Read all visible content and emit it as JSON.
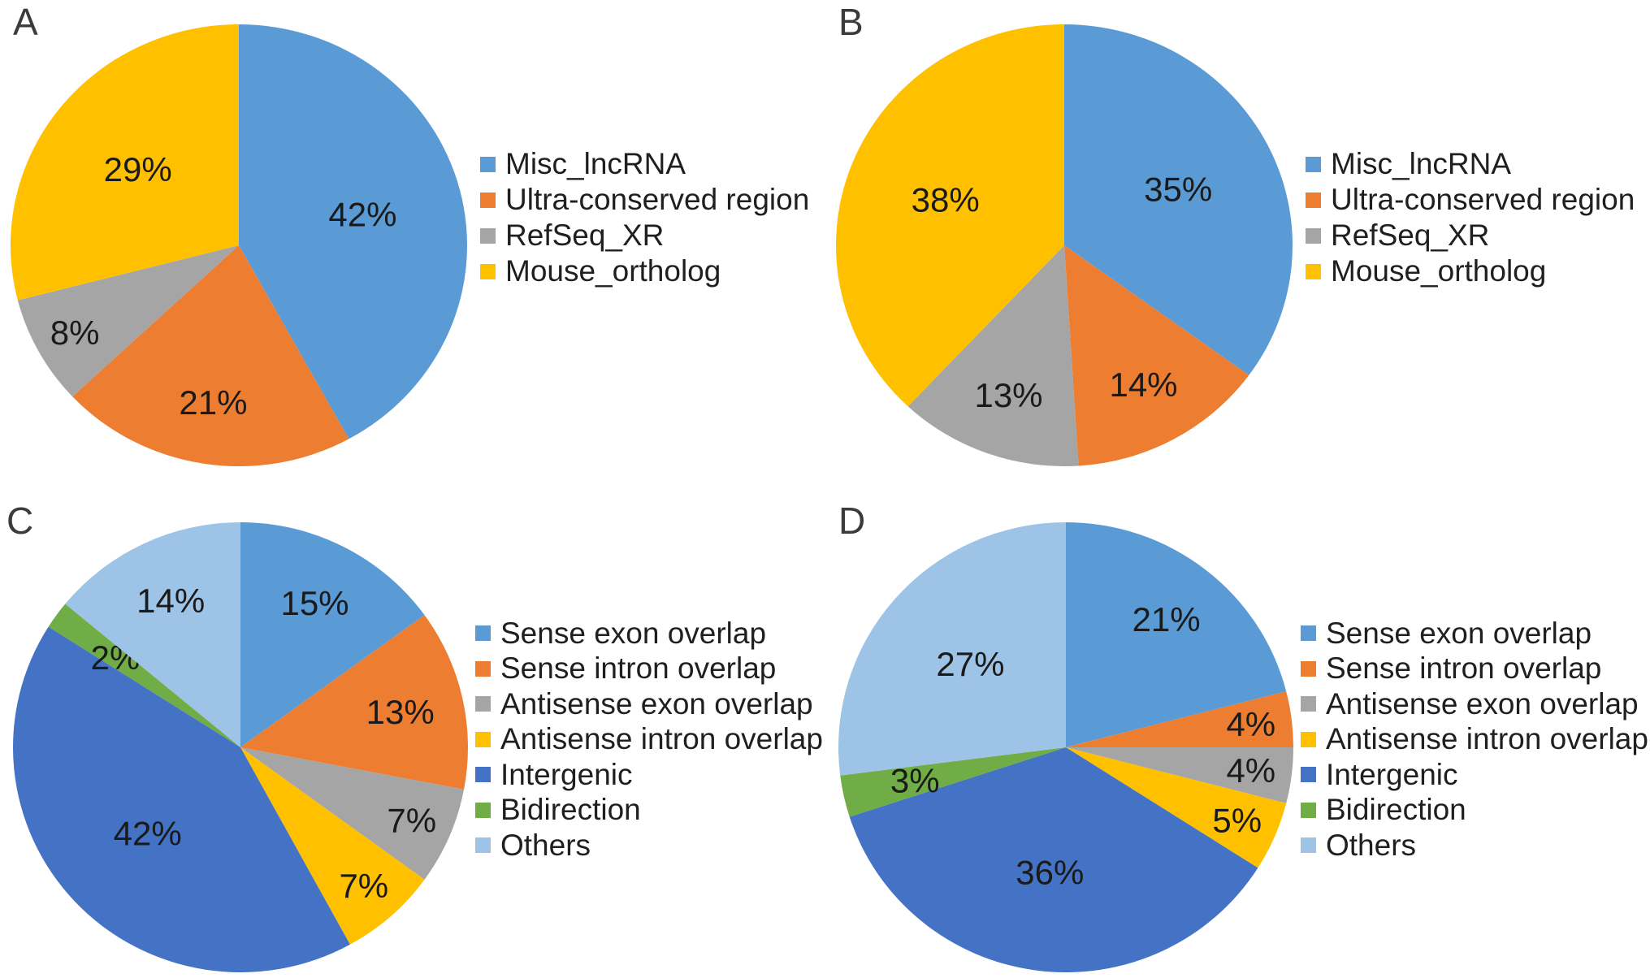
{
  "figure": {
    "background": "#FFFFFF",
    "panel_letters": [
      "A",
      "B",
      "C",
      "D"
    ],
    "letter_color": "#3B3B3B",
    "percent_label_color": "#1A1A1A",
    "legend_text_color": "#1F1F1F"
  },
  "chart_data": [
    {
      "panel": "A",
      "type": "pie",
      "title": "",
      "categories": [
        "Misc_lncRNA",
        "Ultra-conserved region",
        "RefSeq_XR",
        "Mouse_ortholog"
      ],
      "values": [
        42,
        21,
        8,
        29
      ],
      "percent_labels": [
        "42%",
        "21%",
        "8%",
        "29%"
      ],
      "colors": [
        "#5B9BD5",
        "#ED7D31",
        "#A5A5A5",
        "#FFC000"
      ],
      "legend_position": "right",
      "start_angle_deg": 0,
      "direction": "clockwise"
    },
    {
      "panel": "B",
      "type": "pie",
      "title": "",
      "categories": [
        "Misc_lncRNA",
        "Ultra-conserved region",
        "RefSeq_XR",
        "Mouse_ortholog"
      ],
      "values": [
        35,
        14,
        13,
        38
      ],
      "percent_labels": [
        "35%",
        "14%",
        "13%",
        "38%"
      ],
      "colors": [
        "#5B9BD5",
        "#ED7D31",
        "#A5A5A5",
        "#FFC000"
      ],
      "legend_position": "right",
      "start_angle_deg": 0,
      "direction": "clockwise"
    },
    {
      "panel": "C",
      "type": "pie",
      "title": "",
      "categories": [
        "Sense exon overlap",
        "Sense intron overlap",
        "Antisense exon overlap",
        "Antisense intron overlap",
        "Intergenic",
        "Bidirection",
        "Others"
      ],
      "values": [
        15,
        13,
        7,
        7,
        42,
        2,
        14
      ],
      "percent_labels": [
        "15%",
        "13%",
        "7%",
        "7%",
        "42%",
        "2%",
        "14%"
      ],
      "colors": [
        "#5B9BD5",
        "#ED7D31",
        "#A5A5A5",
        "#FFC000",
        "#4472C4",
        "#70AD47",
        "#9DC3E6"
      ],
      "legend_position": "right",
      "start_angle_deg": 0,
      "direction": "clockwise"
    },
    {
      "panel": "D",
      "type": "pie",
      "title": "",
      "categories": [
        "Sense exon overlap",
        "Sense intron overlap",
        "Antisense exon overlap",
        "Antisense intron overlap",
        "Intergenic",
        "Bidirection",
        "Others"
      ],
      "values": [
        21,
        4,
        4,
        5,
        36,
        3,
        27
      ],
      "percent_labels": [
        "21%",
        "4%",
        "4%",
        "5%",
        "36%",
        "3%",
        "27%"
      ],
      "colors": [
        "#5B9BD5",
        "#ED7D31",
        "#A5A5A5",
        "#FFC000",
        "#4472C4",
        "#70AD47",
        "#9DC3E6"
      ],
      "legend_position": "right",
      "start_angle_deg": 0,
      "direction": "clockwise"
    }
  ]
}
